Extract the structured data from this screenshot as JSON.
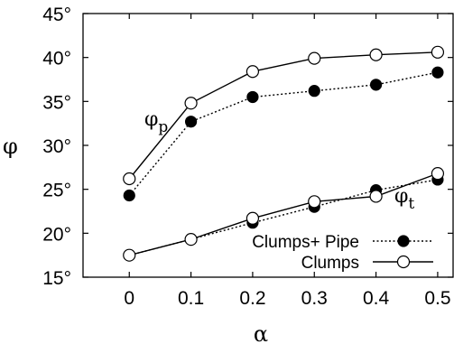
{
  "chart_data": {
    "type": "line",
    "xlabel": "α",
    "ylabel": "φ",
    "xlim": [
      -0.075,
      0.525
    ],
    "ylim": [
      15,
      45
    ],
    "x_ticks": [
      "0",
      "0.1",
      "0.2",
      "0.3",
      "0.4",
      "0.5"
    ],
    "y_ticks": [
      "15°",
      "20°",
      "25°",
      "30°",
      "35°",
      "40°",
      "45°"
    ],
    "y_tick_values": [
      15,
      20,
      25,
      30,
      35,
      40,
      45
    ],
    "x": [
      0,
      0.1,
      0.2,
      0.3,
      0.4,
      0.5
    ],
    "series": [
      {
        "name": "Clumps+ Pipe",
        "group": "phi_p",
        "values": [
          24.3,
          32.7,
          35.5,
          36.2,
          36.9,
          38.3
        ],
        "marker": "filled-circle",
        "line": "dotted",
        "legend": true
      },
      {
        "name": "Clumps",
        "group": "phi_p",
        "values": [
          26.2,
          34.8,
          38.4,
          39.9,
          40.3,
          40.6
        ],
        "marker": "open-circle",
        "line": "solid",
        "legend": true
      },
      {
        "name": "Clumps+ Pipe",
        "group": "phi_t",
        "values": [
          17.5,
          19.3,
          21.2,
          23.0,
          24.9,
          26.1
        ],
        "marker": "filled-circle",
        "line": "dotted",
        "legend": false
      },
      {
        "name": "Clumps",
        "group": "phi_t",
        "values": [
          17.5,
          19.3,
          21.7,
          23.6,
          24.2,
          26.8
        ],
        "marker": "open-circle",
        "line": "solid",
        "legend": false
      }
    ],
    "annotations": [
      {
        "base": "φ",
        "sub": "p"
      },
      {
        "base": "φ",
        "sub": "t"
      }
    ],
    "legend_placement": "bottom-right",
    "grid": false
  }
}
